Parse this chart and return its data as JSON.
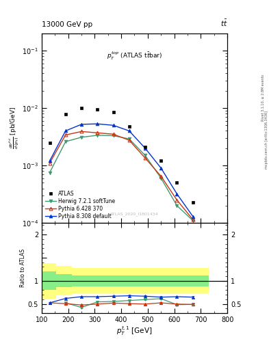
{
  "header_left": "13000 GeV pp",
  "header_right": "tt",
  "annotation": "$p_T^{top}$ (ATLAS t$\\bar{t}$bar)",
  "watermark": "ATLAS_2020_I1801434",
  "side_label1": "mcplots.cern.ch [arXiv:1306.3436]",
  "side_label2": "Rivet 3.1.10, ≥ 2.8M events",
  "xlabel": "$p_T^{t,1}$ [GeV]",
  "ylabel": "$\\frac{d\\sigma^{fid}}{d\\,(p_T)}$ [pb/GeV]",
  "ratio_ylabel": "Ratio to ATLAS",
  "xlim": [
    100,
    800
  ],
  "ylim_main": [
    0.0001,
    0.2
  ],
  "ylim_ratio": [
    0.3,
    2.25
  ],
  "atlas_x": [
    130,
    190,
    250,
    310,
    370,
    430,
    490,
    550,
    610,
    670
  ],
  "atlas_y": [
    0.0025,
    0.0078,
    0.0101,
    0.0095,
    0.0086,
    0.0048,
    0.0021,
    0.0012,
    0.0005,
    0.00023
  ],
  "herwig_x": [
    130,
    190,
    250,
    310,
    370,
    430,
    490,
    550,
    610,
    670
  ],
  "herwig_y": [
    0.00075,
    0.0026,
    0.0031,
    0.00335,
    0.0033,
    0.0029,
    0.0015,
    0.0006,
    0.0002,
    0.00011
  ],
  "herwig_color": "#3d9970",
  "pythia6_x": [
    130,
    190,
    250,
    310,
    370,
    430,
    490,
    550,
    610,
    670
  ],
  "pythia6_y": [
    0.0011,
    0.0034,
    0.0039,
    0.0037,
    0.0035,
    0.00275,
    0.00135,
    0.00065,
    0.00025,
    0.000115
  ],
  "pythia6_color": "#cc3311",
  "pythia8_x": [
    130,
    190,
    250,
    310,
    370,
    430,
    490,
    550,
    610,
    670
  ],
  "pythia8_y": [
    0.0012,
    0.004,
    0.0052,
    0.0053,
    0.005,
    0.004,
    0.002,
    0.0009,
    0.00032,
    0.00013
  ],
  "pythia8_color": "#0033cc",
  "ratio_x": [
    130,
    190,
    250,
    310,
    370,
    430,
    490,
    550,
    610,
    670
  ],
  "ratio_herwig_y": [
    null,
    0.525,
    0.425,
    0.545,
    0.555,
    0.575,
    0.595,
    0.615,
    0.485,
    0.49
  ],
  "ratio_pythia6_y": [
    0.525,
    0.508,
    0.478,
    0.498,
    0.52,
    0.508,
    0.498,
    0.525,
    0.498,
    0.49
  ],
  "ratio_pythia8_y": [
    0.525,
    0.62,
    0.658,
    0.658,
    0.668,
    0.678,
    0.668,
    0.648,
    0.658,
    0.648
  ],
  "band_x_edges": [
    100,
    155,
    215,
    270,
    330,
    390,
    450,
    510,
    570,
    630,
    690,
    730
  ],
  "band_green_lo": [
    0.83,
    0.8,
    0.86,
    0.88,
    0.88,
    0.88,
    0.88,
    0.88,
    0.88,
    0.88,
    0.88,
    0.88
  ],
  "band_green_hi": [
    1.17,
    1.2,
    1.14,
    1.12,
    1.12,
    1.12,
    1.12,
    1.12,
    1.12,
    1.12,
    1.12,
    1.12
  ],
  "band_yellow_lo": [
    0.65,
    0.62,
    0.68,
    0.72,
    0.72,
    0.72,
    0.72,
    0.72,
    0.72,
    0.72,
    0.72,
    0.72
  ],
  "band_yellow_hi": [
    1.35,
    1.38,
    1.32,
    1.28,
    1.28,
    1.28,
    1.28,
    1.28,
    1.28,
    1.28,
    1.28,
    1.28
  ]
}
